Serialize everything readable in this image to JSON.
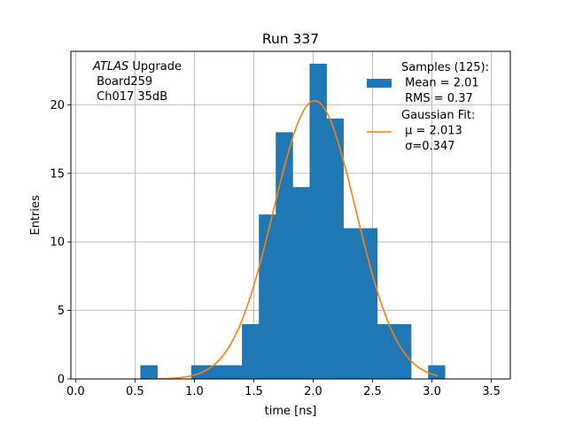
{
  "chart_data": {
    "type": "bar",
    "title": "Run 337",
    "xlabel": "time [ns]",
    "ylabel": "Entries",
    "xlim": [
      -0.04,
      3.66
    ],
    "ylim": [
      0,
      23.9
    ],
    "grid": true,
    "x_ticks": [
      {
        "value": 0.0,
        "label": "0.0"
      },
      {
        "value": 0.5,
        "label": "0.5"
      },
      {
        "value": 1.0,
        "label": "1.0"
      },
      {
        "value": 1.5,
        "label": "1.5"
      },
      {
        "value": 2.0,
        "label": "2.0"
      },
      {
        "value": 2.5,
        "label": "2.5"
      },
      {
        "value": 3.0,
        "label": "3.0"
      },
      {
        "value": 3.5,
        "label": "3.5"
      }
    ],
    "y_ticks": [
      {
        "value": 0,
        "label": "0"
      },
      {
        "value": 5,
        "label": "5"
      },
      {
        "value": 10,
        "label": "10"
      },
      {
        "value": 15,
        "label": "15"
      },
      {
        "value": 20,
        "label": "20"
      }
    ],
    "histogram": {
      "name": "Samples (125):",
      "color": "#1f77b4",
      "bin_edges": [
        0.545,
        0.688,
        0.83,
        0.973,
        1.115,
        1.258,
        1.4,
        1.543,
        1.685,
        1.828,
        1.97,
        2.113,
        2.255,
        2.398,
        2.54,
        2.683,
        2.825,
        2.968,
        3.11
      ],
      "counts": [
        1,
        0,
        0,
        1,
        1,
        1,
        4,
        12,
        18,
        14,
        23,
        19,
        11,
        11,
        4,
        4,
        0,
        1
      ]
    },
    "fit": {
      "name": "Gaussian Fit:",
      "color": "#ff7f0e",
      "type": "gaussian",
      "mu": 2.013,
      "sigma": 0.347,
      "amplitude": 20.3,
      "x_range": [
        0.6,
        3.05
      ]
    },
    "info_box": {
      "lines": [
        {
          "italic": "ATLAS",
          "text": " Upgrade"
        },
        {
          "italic": "",
          "text": " Board259"
        },
        {
          "italic": "",
          "text": " Ch017 35dB"
        }
      ]
    },
    "legend": {
      "placement": "top-right",
      "entries": [
        {
          "kind": "patch",
          "lines": [
            "Samples (125):",
            " Mean = 2.01",
            " RMS = 0.37"
          ]
        },
        {
          "kind": "line",
          "lines": [
            "Gaussian Fit:",
            " μ = 2.013",
            " σ=0.347"
          ]
        }
      ]
    }
  }
}
